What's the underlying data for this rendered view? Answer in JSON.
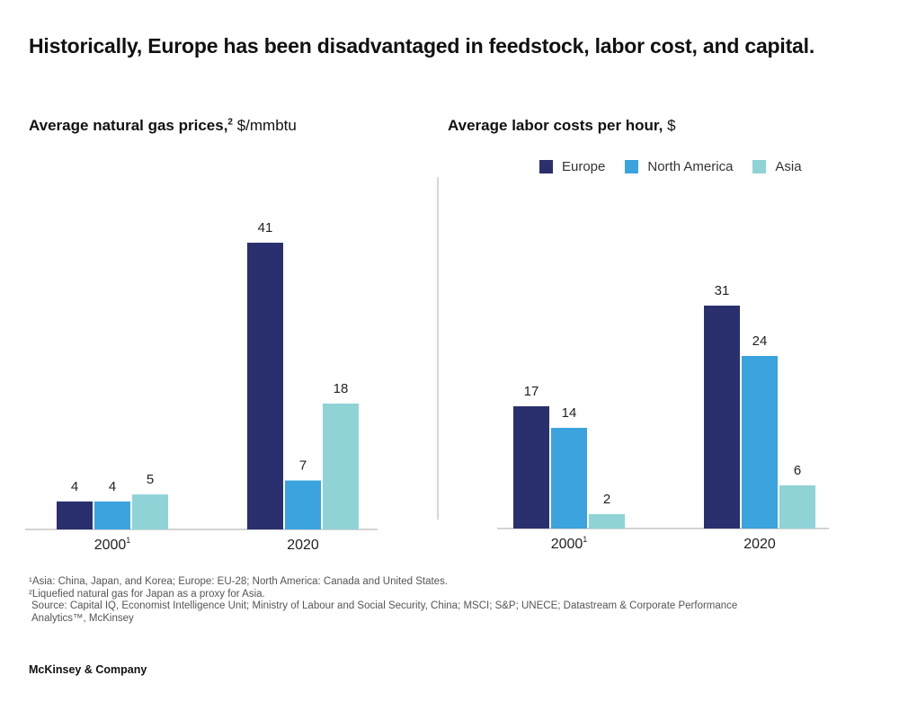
{
  "title": "Historically, Europe has been disadvantaged in feedstock, labor cost, and capital.",
  "colors": {
    "Europe": "#2a2f6e",
    "North America": "#3ba3dd",
    "Asia": "#8fd3d6",
    "axis": "#bbbbbb",
    "divider": "#c8c8c8"
  },
  "legend": [
    {
      "label": "Europe"
    },
    {
      "label": "North America"
    },
    {
      "label": "Asia"
    }
  ],
  "chart_data": [
    {
      "type": "bar",
      "title": "Average natural gas prices,",
      "title_sup": "2",
      "unit": "$/mmbtu",
      "categories": [
        "2000",
        "2020"
      ],
      "category_sups": [
        "1",
        ""
      ],
      "series": [
        {
          "name": "Europe",
          "values": [
            4,
            41
          ]
        },
        {
          "name": "North America",
          "values": [
            4,
            7
          ]
        },
        {
          "name": "Asia",
          "values": [
            5,
            18
          ]
        }
      ],
      "ylim": [
        0,
        41
      ],
      "grid": false,
      "legend": "top-right"
    },
    {
      "type": "bar",
      "title": "Average labor costs per hour,",
      "title_sup": "",
      "unit": "$",
      "categories": [
        "2000",
        "2020"
      ],
      "category_sups": [
        "1",
        ""
      ],
      "series": [
        {
          "name": "Europe",
          "values": [
            17,
            31
          ]
        },
        {
          "name": "North America",
          "values": [
            14,
            24
          ]
        },
        {
          "name": "Asia",
          "values": [
            2,
            6
          ]
        }
      ],
      "ylim": [
        0,
        31
      ],
      "grid": false,
      "legend": "top-right"
    }
  ],
  "footnotes": {
    "note1": "¹Asia: China, Japan, and Korea;  Europe: EU-28; North America: Canada  and United States.",
    "note2": "²Liquefied natural gas for Japan as a proxy for Asia.",
    "source1": "Source: Capital IQ, Economist Intelligence Unit; Ministry of Labour and Social Security, China; MSCI; S&P; UNECE; Datastream & Corporate Performance",
    "source2": "Analytics™, McKinsey"
  },
  "brand": "McKinsey & Company"
}
